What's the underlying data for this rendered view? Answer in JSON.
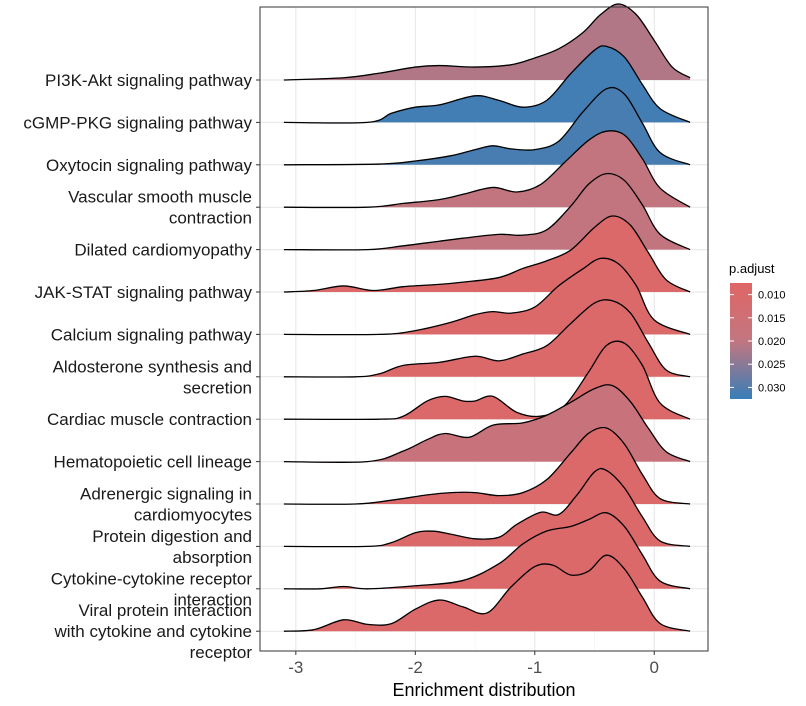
{
  "chart_data": {
    "type": "ridgeline",
    "xlabel": "Enrichment distribution",
    "xlim": [
      -3.3,
      0.45
    ],
    "xticks": [
      -3,
      -2,
      -1,
      0
    ],
    "xtick_labels": [
      "-3",
      "-2",
      "-1",
      "0"
    ],
    "grid": true,
    "legend": {
      "title": "p.adjust",
      "position": "right",
      "ticks": [
        0.01,
        0.015,
        0.02,
        0.025,
        0.03
      ],
      "tick_labels": [
        "0.010",
        "0.015",
        "0.020",
        "0.025",
        "0.030"
      ],
      "range": [
        0.0075,
        0.0325
      ],
      "color_low": "#E06666",
      "color_mid": "#C27680",
      "color_high": "#377EB8"
    },
    "series": [
      {
        "name": "PI3K-Akt signaling pathway",
        "label_lines": [
          "PI3K-Akt signaling pathway"
        ],
        "p_adjust": 0.0215,
        "x": [
          -3.1,
          -2.6,
          -2.3,
          -2.0,
          -1.8,
          -1.5,
          -1.2,
          -1.0,
          -0.8,
          -0.6,
          -0.45,
          -0.3,
          -0.15,
          0.0,
          0.15,
          0.3
        ],
        "density": [
          0.0,
          0.03,
          0.09,
          0.17,
          0.19,
          0.17,
          0.2,
          0.29,
          0.41,
          0.62,
          0.86,
          1.0,
          0.86,
          0.52,
          0.17,
          0.03
        ]
      },
      {
        "name": "cGMP-PKG signaling pathway",
        "label_lines": [
          "cGMP-PKG signaling pathway"
        ],
        "p_adjust": 0.0315,
        "x": [
          -3.1,
          -2.4,
          -2.2,
          -2.0,
          -1.8,
          -1.5,
          -1.3,
          -1.1,
          -0.9,
          -0.7,
          -0.5,
          -0.4,
          -0.25,
          -0.1,
          0.05,
          0.3
        ],
        "density": [
          0.0,
          0.0,
          0.12,
          0.2,
          0.23,
          0.35,
          0.29,
          0.2,
          0.29,
          0.64,
          0.95,
          1.0,
          0.86,
          0.5,
          0.18,
          0.0
        ]
      },
      {
        "name": "Oxytocin signaling pathway",
        "label_lines": [
          "Oxytocin signaling pathway"
        ],
        "p_adjust": 0.031,
        "x": [
          -3.1,
          -2.3,
          -2.0,
          -1.7,
          -1.5,
          -1.35,
          -1.2,
          -1.0,
          -0.8,
          -0.6,
          -0.4,
          -0.25,
          -0.1,
          0.05,
          0.3
        ],
        "density": [
          0.0,
          0.01,
          0.05,
          0.12,
          0.2,
          0.25,
          0.21,
          0.2,
          0.31,
          0.69,
          1.0,
          0.93,
          0.55,
          0.16,
          0.0
        ]
      },
      {
        "name": "Vascular smooth muscle contraction",
        "label_lines": [
          "Vascular smooth muscle",
          "contraction"
        ],
        "p_adjust": 0.0195,
        "x": [
          -3.1,
          -2.4,
          -2.1,
          -1.8,
          -1.6,
          -1.35,
          -1.15,
          -0.95,
          -0.75,
          -0.55,
          -0.4,
          -0.25,
          -0.1,
          0.05,
          0.3
        ],
        "density": [
          0.0,
          0.0,
          0.05,
          0.1,
          0.17,
          0.26,
          0.2,
          0.3,
          0.59,
          0.88,
          1.0,
          0.95,
          0.64,
          0.25,
          0.0
        ]
      },
      {
        "name": "Dilated cardiomyopathy",
        "label_lines": [
          "Dilated cardiomyopathy"
        ],
        "p_adjust": 0.0195,
        "x": [
          -3.1,
          -2.4,
          -2.1,
          -1.8,
          -1.6,
          -1.3,
          -1.1,
          -0.9,
          -0.7,
          -0.55,
          -0.4,
          -0.25,
          -0.1,
          0.05,
          0.3
        ],
        "density": [
          0.0,
          0.0,
          0.05,
          0.11,
          0.15,
          0.2,
          0.19,
          0.26,
          0.57,
          0.86,
          1.0,
          0.91,
          0.59,
          0.2,
          0.0
        ]
      },
      {
        "name": "JAK-STAT signaling pathway",
        "label_lines": [
          "JAK-STAT signaling pathway"
        ],
        "p_adjust": 0.0095,
        "x": [
          -3.1,
          -2.85,
          -2.6,
          -2.35,
          -2.1,
          -1.8,
          -1.6,
          -1.3,
          -1.1,
          -0.9,
          -0.7,
          -0.5,
          -0.35,
          -0.2,
          -0.05,
          0.1,
          0.3
        ],
        "density": [
          0.0,
          0.02,
          0.08,
          0.02,
          0.07,
          0.1,
          0.13,
          0.19,
          0.31,
          0.41,
          0.55,
          0.85,
          1.0,
          0.88,
          0.52,
          0.16,
          0.0
        ]
      },
      {
        "name": "Calcium signaling pathway",
        "label_lines": [
          "Calcium signaling pathway"
        ],
        "p_adjust": 0.0095,
        "x": [
          -3.1,
          -2.3,
          -2.0,
          -1.7,
          -1.5,
          -1.35,
          -1.2,
          -1.0,
          -0.8,
          -0.6,
          -0.45,
          -0.3,
          -0.15,
          0.0,
          0.3
        ],
        "density": [
          0.0,
          0.0,
          0.05,
          0.16,
          0.26,
          0.3,
          0.28,
          0.36,
          0.64,
          0.86,
          1.0,
          0.93,
          0.64,
          0.19,
          0.0
        ]
      },
      {
        "name": "Aldosterone synthesis and secretion",
        "label_lines": [
          "Aldosterone synthesis and",
          "secretion"
        ],
        "p_adjust": 0.0095,
        "x": [
          -3.1,
          -2.5,
          -2.3,
          -2.1,
          -1.8,
          -1.5,
          -1.3,
          -1.1,
          -0.9,
          -0.7,
          -0.5,
          -0.35,
          -0.2,
          -0.05,
          0.1,
          0.3
        ],
        "density": [
          0.0,
          0.0,
          0.04,
          0.15,
          0.19,
          0.27,
          0.21,
          0.3,
          0.41,
          0.7,
          0.97,
          1.0,
          0.84,
          0.45,
          0.09,
          0.0
        ]
      },
      {
        "name": "Cardiac muscle contraction",
        "label_lines": [
          "Cardiac muscle contraction"
        ],
        "p_adjust": 0.0095,
        "x": [
          -3.1,
          -2.3,
          -2.1,
          -1.9,
          -1.75,
          -1.6,
          -1.5,
          -1.35,
          -1.15,
          -0.95,
          -0.75,
          -0.55,
          -0.4,
          -0.25,
          -0.1,
          0.05,
          0.3
        ],
        "density": [
          0.0,
          0.0,
          0.04,
          0.24,
          0.3,
          0.24,
          0.24,
          0.3,
          0.09,
          0.04,
          0.18,
          0.62,
          0.97,
          1.0,
          0.71,
          0.21,
          0.0
        ]
      },
      {
        "name": "Hematopoietic cell lineage",
        "label_lines": [
          "Hematopoietic cell lineage"
        ],
        "p_adjust": 0.0175,
        "x": [
          -3.1,
          -2.4,
          -2.1,
          -1.9,
          -1.75,
          -1.55,
          -1.35,
          -1.1,
          -0.9,
          -0.7,
          -0.5,
          -0.35,
          -0.2,
          -0.05,
          0.1,
          0.3
        ],
        "density": [
          0.0,
          0.0,
          0.14,
          0.29,
          0.37,
          0.32,
          0.48,
          0.51,
          0.61,
          0.78,
          0.96,
          1.0,
          0.79,
          0.44,
          0.13,
          0.0
        ]
      },
      {
        "name": "Adrenergic signaling in cardiomyocytes",
        "label_lines": [
          "Adrenergic signaling in",
          "cardiomyocytes"
        ],
        "p_adjust": 0.0095,
        "x": [
          -3.1,
          -2.5,
          -2.2,
          -1.9,
          -1.7,
          -1.5,
          -1.3,
          -1.1,
          -0.9,
          -0.7,
          -0.55,
          -0.4,
          -0.25,
          -0.1,
          0.05,
          0.3
        ],
        "density": [
          0.0,
          0.0,
          0.05,
          0.12,
          0.15,
          0.15,
          0.11,
          0.15,
          0.32,
          0.67,
          0.93,
          1.0,
          0.79,
          0.39,
          0.07,
          0.0
        ]
      },
      {
        "name": "Protein digestion and absorption",
        "label_lines": [
          "Protein digestion and",
          "absorption"
        ],
        "p_adjust": 0.0095,
        "x": [
          -3.1,
          -2.4,
          -2.2,
          -2.0,
          -1.85,
          -1.7,
          -1.5,
          -1.3,
          -1.15,
          -0.95,
          -0.8,
          -0.65,
          -0.5,
          -0.4,
          -0.25,
          -0.1,
          0.05,
          0.3
        ],
        "density": [
          0.0,
          0.0,
          0.05,
          0.18,
          0.2,
          0.16,
          0.1,
          0.12,
          0.29,
          0.45,
          0.42,
          0.67,
          0.98,
          1.0,
          0.77,
          0.39,
          0.07,
          0.0
        ]
      },
      {
        "name": "Cytokine-cytokine receptor interaction",
        "label_lines": [
          "Cytokine-cytokine receptor",
          "interaction"
        ],
        "p_adjust": 0.0095,
        "x": [
          -3.1,
          -2.8,
          -2.6,
          -2.4,
          -2.0,
          -1.6,
          -1.3,
          -1.1,
          -0.9,
          -0.7,
          -0.55,
          -0.4,
          -0.25,
          -0.1,
          0.05,
          0.3
        ],
        "density": [
          0.0,
          0.0,
          0.03,
          0.0,
          0.04,
          0.11,
          0.33,
          0.59,
          0.76,
          0.82,
          0.91,
          1.0,
          0.82,
          0.45,
          0.1,
          0.0
        ]
      },
      {
        "name": "Viral protein interaction with cytokine and cytokine receptor",
        "label_lines": [
          "Viral protein interaction",
          "with cytokine and cytokine",
          "receptor"
        ],
        "p_adjust": 0.0095,
        "x": [
          -3.1,
          -2.85,
          -2.6,
          -2.4,
          -2.2,
          -2.0,
          -1.8,
          -1.6,
          -1.4,
          -1.2,
          -1.0,
          -0.85,
          -0.7,
          -0.55,
          -0.4,
          -0.25,
          -0.1,
          0.05,
          0.3
        ],
        "density": [
          0.0,
          0.02,
          0.15,
          0.09,
          0.1,
          0.29,
          0.41,
          0.32,
          0.24,
          0.58,
          0.85,
          0.87,
          0.74,
          0.79,
          1.0,
          0.82,
          0.45,
          0.1,
          0.0
        ]
      }
    ]
  }
}
